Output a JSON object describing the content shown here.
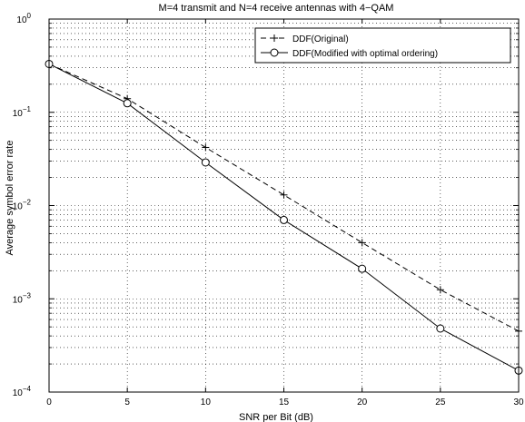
{
  "chart_data": {
    "type": "line",
    "title": "M=4 transmit and N=4 receive antennas with 4−QAM",
    "xlabel": "SNR per Bit (dB)",
    "ylabel": "Average symbol error rate",
    "x": [
      0,
      5,
      10,
      15,
      20,
      25,
      30
    ],
    "xlim": [
      0,
      30
    ],
    "ylim": [
      0.0001,
      1
    ],
    "yscale": "log",
    "grid": true,
    "legend_location": "top-right",
    "xticks": [
      "0",
      "5",
      "10",
      "15",
      "20",
      "25",
      "30"
    ],
    "yticks": [
      {
        "base": "10",
        "exp": "0"
      },
      {
        "base": "10",
        "exp": "−1"
      },
      {
        "base": "10",
        "exp": "−2"
      },
      {
        "base": "10",
        "exp": "−3"
      },
      {
        "base": "10",
        "exp": "−4"
      }
    ],
    "series": [
      {
        "name": "DDF(Original)",
        "marker": "plus",
        "linestyle": "dashed",
        "values": [
          0.33,
          0.14,
          0.042,
          0.013,
          0.004,
          0.00125,
          0.00045
        ]
      },
      {
        "name": "DDF(Modified with optimal ordering)",
        "marker": "circle",
        "linestyle": "solid",
        "values": [
          0.33,
          0.125,
          0.029,
          0.007,
          0.0021,
          0.00048,
          0.00017
        ]
      }
    ],
    "colors": {
      "line": "#000000",
      "grid": "#000000",
      "background": "#ffffff"
    }
  }
}
